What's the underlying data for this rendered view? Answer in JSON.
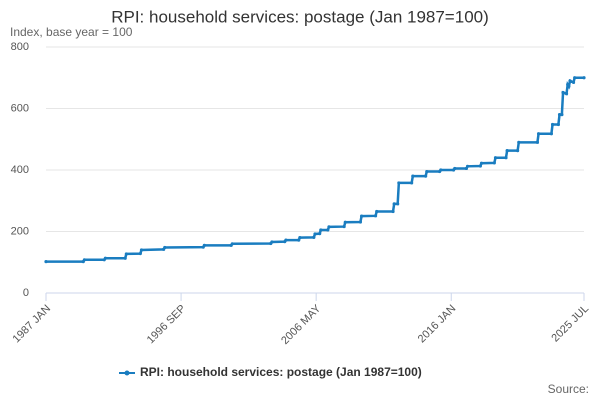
{
  "chart_data": {
    "type": "line",
    "title": "RPI: household services: postage (Jan 1987=100)",
    "subtitle": "Index, base year = 100",
    "source": "Source:",
    "x": [
      "1987-01",
      "1989-09",
      "1989-10",
      "1991-03",
      "1991-04",
      "1992-09",
      "1992-10",
      "1993-10",
      "1993-11",
      "1995-06",
      "1995-07",
      "1998-04",
      "1998-05",
      "2000-04",
      "2000-05",
      "2003-02",
      "2003-03",
      "2004-02",
      "2004-03",
      "2005-02",
      "2005-03",
      "2006-03",
      "2006-04",
      "2006-08",
      "2006-09",
      "2007-03",
      "2007-04",
      "2008-05",
      "2008-06",
      "2009-07",
      "2009-08",
      "2010-08",
      "2010-09",
      "2011-11",
      "2011-12",
      "2012-03",
      "2012-04",
      "2013-03",
      "2013-04",
      "2014-03",
      "2014-04",
      "2015-03",
      "2015-04",
      "2016-03",
      "2016-04",
      "2017-02",
      "2017-03",
      "2018-02",
      "2018-03",
      "2019-02",
      "2019-03",
      "2019-12",
      "2020-01",
      "2020-10",
      "2020-11",
      "2022-03",
      "2022-04",
      "2023-03",
      "2023-04",
      "2023-09",
      "2023-10",
      "2023-12",
      "2024-01",
      "2024-04",
      "2024-05",
      "2024-06",
      "2024-07",
      "2024-10",
      "2024-11",
      "2025-07"
    ],
    "series": [
      {
        "name": "RPI: household services: postage (Jan 1987=100)",
        "color": "#1a7dc0",
        "values": [
          102,
          102,
          108,
          108,
          113,
          113,
          127,
          128,
          140,
          142,
          148,
          149,
          155,
          155,
          160,
          161,
          166,
          167,
          172,
          172,
          180,
          181,
          192,
          193,
          205,
          205,
          215,
          216,
          230,
          231,
          250,
          251,
          265,
          265,
          290,
          290,
          358,
          358,
          380,
          380,
          395,
          395,
          400,
          400,
          405,
          405,
          412,
          413,
          422,
          423,
          440,
          440,
          463,
          463,
          490,
          490,
          518,
          518,
          548,
          548,
          580,
          580,
          652,
          648,
          678,
          672,
          690,
          685,
          700,
          700
        ]
      }
    ],
    "xlim": [
      "1987-01",
      "2025-07"
    ],
    "xticks": [
      {
        "value": "1987-01",
        "label": "1987 JAN"
      },
      {
        "value": "1996-09",
        "label": "1996 SEP"
      },
      {
        "value": "2006-05",
        "label": "2006 MAY"
      },
      {
        "value": "2016-01",
        "label": "2016 JAN"
      },
      {
        "value": "2025-07",
        "label": "2025 JUL"
      }
    ],
    "ylim": [
      0,
      800
    ],
    "yticks": [
      0,
      200,
      400,
      600,
      800
    ],
    "grid": true
  }
}
